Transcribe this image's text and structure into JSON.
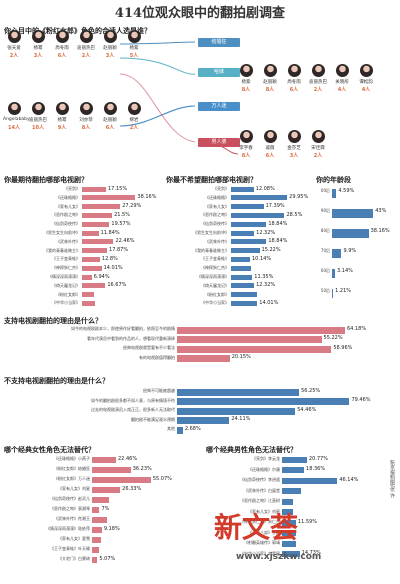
{
  "title": "414位观众眼中的翻拍剧调查",
  "q1": {
    "question": "你心目中的《粉红女郎》角色的合适人选是谁？",
    "groups": [
      {
        "label": "结婚狂",
        "color": "#4e8fc2"
      },
      {
        "label": "哈妹",
        "color": "#58b0c7"
      },
      {
        "label": "万人迷",
        "color": "#4a8fc9"
      },
      {
        "label": "男人婆",
        "color": "#c8505f"
      }
    ],
    "candidates_top": [
      {
        "name": "张天爱",
        "count": "2人"
      },
      {
        "name": "杨幂",
        "count": "3人"
      },
      {
        "name": "周冬雨",
        "count": "6人"
      },
      {
        "name": "迪丽热巴",
        "count": "2人"
      },
      {
        "name": "赵丽颖",
        "count": "3人"
      },
      {
        "name": "杨紫",
        "count": "5人"
      }
    ],
    "candidates_hamei": [
      {
        "name": "杨紫",
        "count": "8人"
      },
      {
        "name": "赵丽颖",
        "count": "8人"
      },
      {
        "name": "周冬雨",
        "count": "6人"
      },
      {
        "name": "迪丽热巴",
        "count": "2人"
      },
      {
        "name": "关晓彤",
        "count": "4人"
      },
      {
        "name": "谭松韵",
        "count": "4人"
      }
    ],
    "candidates_wanrenmi": [
      {
        "name": "Angelababy",
        "count": "14人"
      },
      {
        "name": "迪丽热巴",
        "count": "10人"
      },
      {
        "name": "杨幂",
        "count": "9人"
      },
      {
        "name": "刘亦菲",
        "count": "8人"
      },
      {
        "name": "赵丽颖",
        "count": "6人"
      },
      {
        "name": "柳岩",
        "count": "2人"
      }
    ],
    "candidates_nanrenpo": [
      {
        "name": "李宇春",
        "count": "8人"
      },
      {
        "name": "戚薇",
        "count": "6人"
      },
      {
        "name": "金莎芝",
        "count": "3人"
      },
      {
        "name": "宋佳霖",
        "count": "2人"
      }
    ]
  },
  "q2": {
    "question": "你最期待翻拍哪部电视剧？"
  },
  "q3": {
    "question": "你最不希望翻拍哪部电视剧？"
  },
  "q4": {
    "question": "你的年龄段"
  },
  "q5": {
    "question": "支持电视剧翻拍的理由是什么？"
  },
  "q6": {
    "question": "不支持电视剧翻拍的理由是什么？"
  },
  "q7": {
    "question": "哪个经典女性角色无法替代？"
  },
  "q8": {
    "question": "哪个经典男性角色无法替代？"
  },
  "footer": {
    "brand": "新文荟",
    "url": "www.xjszkw.com",
    "side": "新京报制图/张 许"
  },
  "colors": {
    "pink": "#d87b85",
    "blue": "#4a7fb5",
    "title": "#333333"
  },
  "chart_data": [
    {
      "type": "bar",
      "title": "你最期待翻拍哪部电视剧？",
      "categories": [
        "《亮剑》",
        "《还珠格格》",
        "《家有儿女》",
        "《恶作剧之吻》",
        "《仙剑奇侠传》",
        "《男生女生向前冲》",
        "《武林外传》",
        "《我的青春谁做主》",
        "《王子变青蛙》",
        "《神探狄仁杰》",
        "《情深深雨濛濛》",
        "《倚天屠龙记》",
        "《粉红女郎》",
        "《中华小当家》"
      ],
      "values": [
        17.15,
        38.16,
        27.29,
        21.5,
        19.57,
        11.84,
        22.46,
        17.87,
        12.8,
        14.01,
        6.94,
        16.67,
        8.45,
        9.6
      ],
      "value_labels": [
        "17.15%",
        "38.16%",
        "27.29%",
        "21.5%",
        "19.57%",
        "11.84%",
        "22.46%",
        "17.87%",
        "12.8%",
        "14.01%",
        "6.94%",
        "16.67%",
        "",
        ""
      ],
      "color": "#d87b85"
    },
    {
      "type": "bar",
      "title": "你最不希望翻拍哪部电视剧？",
      "categories": [
        "《亮剑》",
        "《还珠格格》",
        "《家有儿女》",
        "《恶作剧之吻》",
        "《仙剑奇侠传》",
        "《男生女生向前冲》",
        "《武林外传》",
        "《我的青春谁做主》",
        "《王子变青蛙》",
        "《神探狄仁杰》",
        "《情深深雨濛濛》",
        "《倚天屠龙记》",
        "《粉红女郎》",
        "《中华小当家》"
      ],
      "values": [
        12.08,
        29.95,
        17.39,
        28.5,
        18.84,
        12.32,
        18.84,
        15.22,
        10.14,
        10.63,
        11.35,
        12.32,
        14.01,
        14.01
      ],
      "value_labels": [
        "12.08%",
        "29.95%",
        "17.39%",
        "28.5%",
        "18.84%",
        "12.32%",
        "18.84%",
        "15.22%",
        "10.14%",
        "",
        "11.35%",
        "12.32%",
        "",
        "14.01%"
      ],
      "color": "#4a7fb5"
    },
    {
      "type": "bar",
      "title": "你的年龄段",
      "categories": [
        "00后",
        "90后",
        "80后",
        "70后",
        "60后",
        "50后"
      ],
      "values": [
        4.59,
        43,
        38.16,
        9.9,
        3.14,
        1.21
      ],
      "value_labels": [
        "4.59%",
        "43%",
        "38.16%",
        "9.9%",
        "3.14%",
        "1.21%"
      ],
      "color": "#4a7fb5"
    },
    {
      "type": "bar",
      "title": "支持电视剧翻拍的理由是什么？",
      "categories": [
        "如今的电视剧剧本少，即使原作好看翻拍，依照至今的剧情",
        "看年代演员中看到的作品的人，想看现代重新演绎",
        "经典电视剧就是要有不少看法",
        "有的电视剧值得翻拍"
      ],
      "values": [
        64.18,
        55.22,
        58.96,
        20.15
      ],
      "value_labels": [
        "64.18%",
        "55.22%",
        "58.96%",
        "20.15%"
      ],
      "color": "#d87b85"
    },
    {
      "type": "bar",
      "title": "不支持电视剧翻拍的理由是什么？",
      "categories": [
        "经典不可能被超越",
        "如今的翻拍剧很多都不如人意，与原有情境不符",
        "过去的电视剧演员入戏正正，很多新人无法取代",
        "翻拍剧不能满足观众预期",
        "其他"
      ],
      "values": [
        56.25,
        79.46,
        54.46,
        24.11,
        2.68
      ],
      "value_labels": [
        "56.25%",
        "79.46%",
        "54.46%",
        "24.11%",
        "2.68%"
      ],
      "color": "#4a7fb5"
    },
    {
      "type": "bar",
      "title": "哪个经典女性角色无法替代？",
      "categories": [
        "《还珠格格》小燕子",
        "《粉红女郎》结婚狂",
        "《粉红女郎》万人迷",
        "《家有儿女》刘星",
        "《仙剑奇侠传》赵灵儿",
        "《恶作剧之吻》袁湘琴",
        "《武林外传》佟湘玉",
        "《情深深雨濛濛》陆依萍",
        "《家有儿女》夏雪",
        "《王子变青蛙》叶天瑜",
        "《大宅门》白景琦"
      ],
      "values": [
        22.46,
        36.23,
        55.07,
        26.33,
        15.94,
        7,
        14,
        9.18,
        8.7,
        6.3,
        5.07
      ],
      "value_labels": [
        "22.46%",
        "36.23%",
        "55.07%",
        "26.33%",
        "",
        "7%",
        "",
        "9.18%",
        "",
        "",
        "5.07%"
      ],
      "color": "#d87b85"
    },
    {
      "type": "bar",
      "title": "哪个经典男性角色无法替代？",
      "categories": [
        "《亮剑》李云龙",
        "《还珠格格》尔康",
        "《仙剑奇侠传》李逍遥",
        "《武林外传》白展堂",
        "《恶作剧之吻》江直树",
        "《家有儿女》刘星",
        "《神探狄仁杰》狄仁杰",
        "《天龙八部》乔峰",
        "《射雕英雄传》郭靖",
        "《中华小当家》刘昴星"
      ],
      "values": [
        20.77,
        18.36,
        46.14,
        15.94,
        8.94,
        9.4,
        11.59,
        11.59,
        11.59,
        14.73
      ],
      "value_labels": [
        "20.77%",
        "18.36%",
        "46.14%",
        "",
        "",
        "",
        "11.59%",
        "",
        "",
        "14.73%"
      ],
      "color": "#4a7fb5"
    }
  ]
}
